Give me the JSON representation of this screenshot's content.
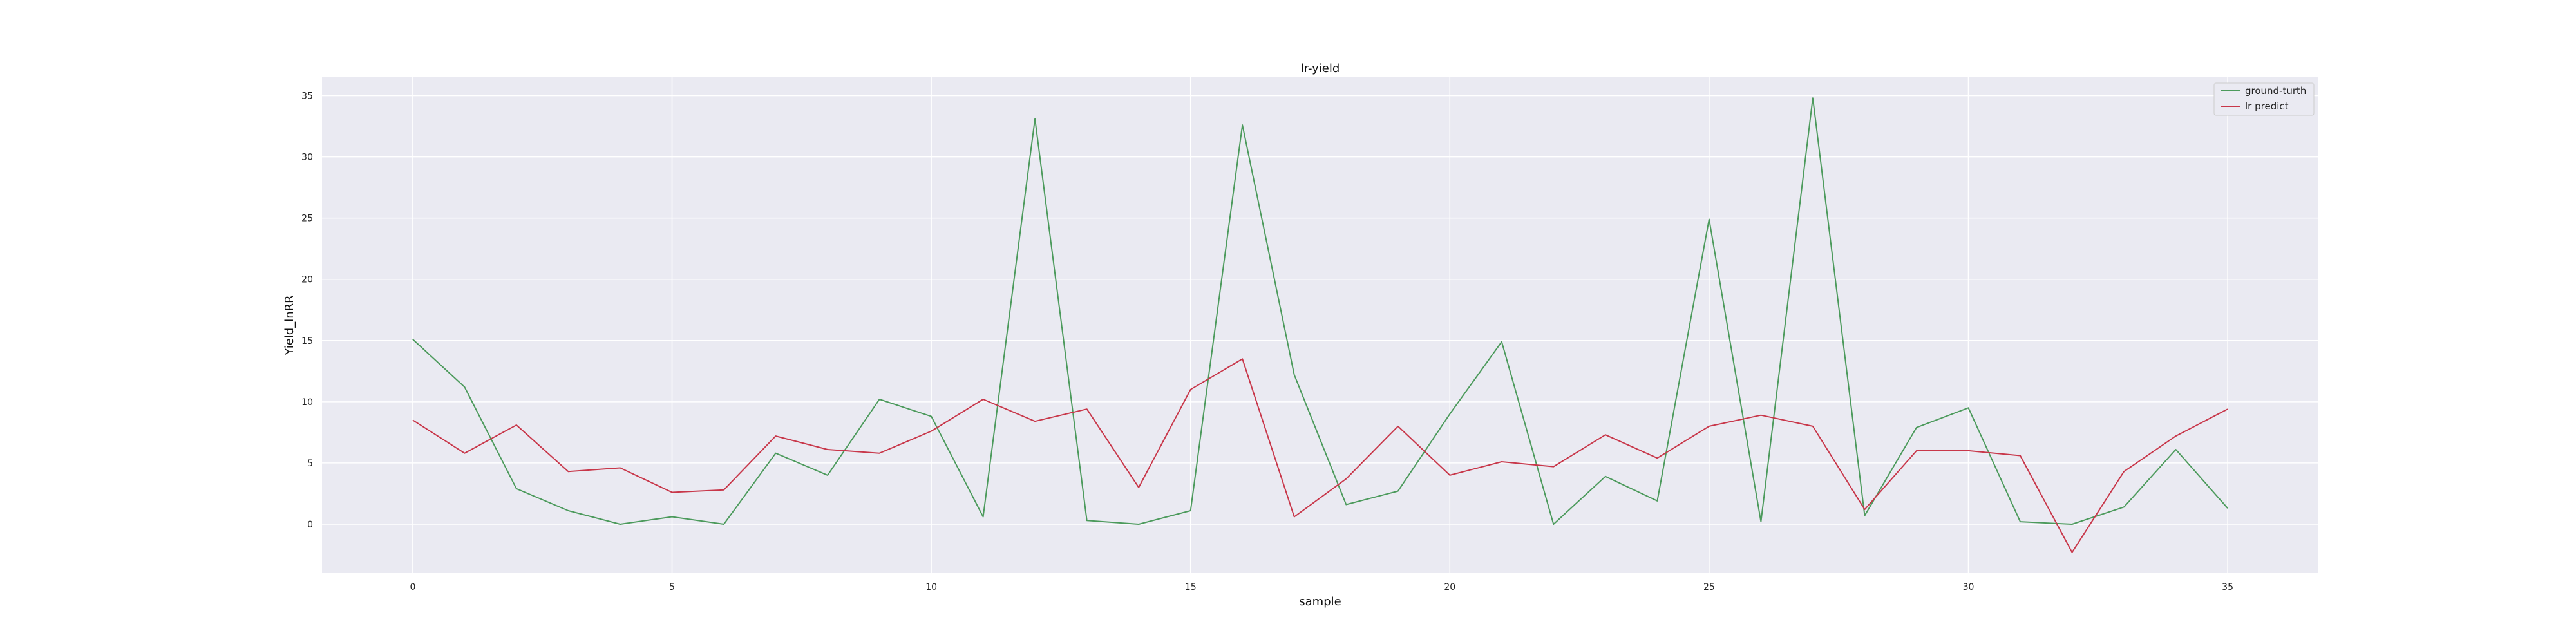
{
  "chart_data": {
    "type": "line",
    "title": "lr-yield",
    "xlabel": "sample",
    "ylabel": "Yield_lnRR",
    "xlim": [
      -1.75,
      36.75
    ],
    "ylim": [
      -4.0,
      36.5
    ],
    "xticks": [
      0,
      5,
      10,
      15,
      20,
      25,
      30,
      35
    ],
    "yticks": [
      0,
      5,
      10,
      15,
      20,
      25,
      30,
      35
    ],
    "grid": true,
    "legend_position": "top-right",
    "x": [
      0,
      1,
      2,
      3,
      4,
      5,
      6,
      7,
      8,
      9,
      10,
      11,
      12,
      13,
      14,
      15,
      16,
      17,
      18,
      19,
      20,
      21,
      22,
      23,
      24,
      25,
      26,
      27,
      28,
      29,
      30,
      31,
      32,
      33,
      34,
      35
    ],
    "series": [
      {
        "name": "ground-turth",
        "color": "#4c9a5c",
        "values": [
          15.1,
          11.2,
          2.9,
          1.1,
          0.0,
          0.6,
          0.0,
          5.8,
          4.0,
          10.2,
          8.8,
          0.6,
          33.1,
          0.3,
          0.0,
          1.1,
          32.6,
          12.2,
          1.6,
          2.7,
          9.0,
          14.9,
          0.0,
          3.9,
          1.9,
          24.9,
          0.2,
          34.8,
          0.7,
          7.9,
          9.5,
          0.2,
          0.0,
          1.4,
          6.1,
          1.3
        ]
      },
      {
        "name": "lr predict",
        "color": "#c8374a",
        "values": [
          8.5,
          5.8,
          8.1,
          4.3,
          4.6,
          2.6,
          2.8,
          7.2,
          6.1,
          5.8,
          7.6,
          10.2,
          8.4,
          9.4,
          3.0,
          11.0,
          13.5,
          0.6,
          3.7,
          8.0,
          4.0,
          5.1,
          4.7,
          7.3,
          5.4,
          8.0,
          8.9,
          8.0,
          1.2,
          6.0,
          6.0,
          5.6,
          -2.3,
          4.3,
          7.2,
          9.4
        ]
      }
    ]
  }
}
